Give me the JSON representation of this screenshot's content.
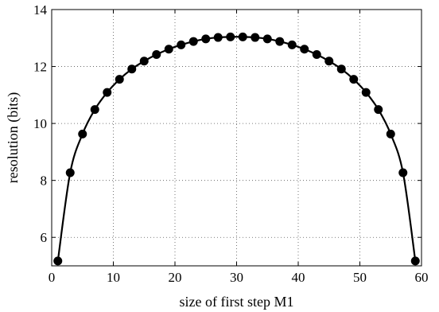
{
  "chart_data": {
    "type": "line",
    "title": "",
    "xlabel": "size of first step M1",
    "ylabel": "resolution (bits)",
    "xlim": [
      0,
      60
    ],
    "ylim": [
      5,
      14
    ],
    "xticks": [
      0,
      10,
      20,
      30,
      40,
      50,
      60
    ],
    "yticks": [
      6,
      8,
      10,
      12,
      14
    ],
    "grid": true,
    "grid_style": "dotted",
    "marker": "filled-circle",
    "line_color": "#000000",
    "series": [
      {
        "x": [
          1,
          3,
          5,
          7,
          9,
          11,
          13,
          15,
          17,
          19,
          21,
          23,
          25,
          27,
          29,
          31,
          33,
          35,
          37,
          39,
          41,
          43,
          45,
          47,
          49,
          51,
          53,
          55,
          57,
          59
        ],
        "y": [
          5.17,
          8.27,
          9.63,
          10.49,
          11.09,
          11.55,
          11.91,
          12.19,
          12.42,
          12.61,
          12.76,
          12.88,
          12.97,
          13.02,
          13.04,
          13.04,
          13.02,
          12.97,
          12.88,
          12.76,
          12.61,
          12.42,
          12.19,
          11.91,
          11.55,
          11.09,
          10.49,
          9.63,
          8.27,
          5.17
        ]
      }
    ]
  }
}
